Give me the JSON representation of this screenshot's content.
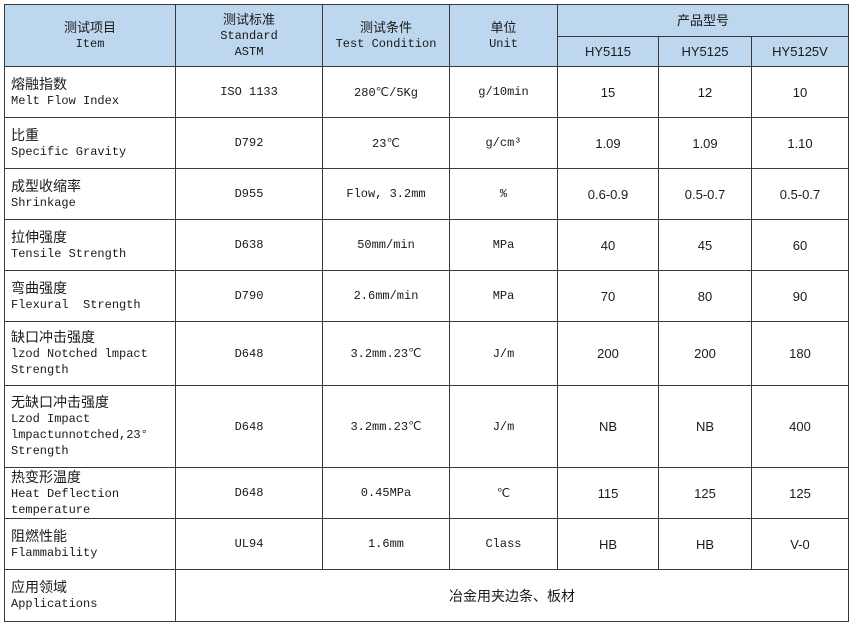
{
  "header": {
    "item": {
      "zh": "测试项目",
      "en": "Item"
    },
    "standard": {
      "zh": "测试标准",
      "en1": "Standard",
      "en2": "ASTM"
    },
    "condition": {
      "zh": "测试条件",
      "en": "Test Condition"
    },
    "unit": {
      "zh": "单位",
      "en": "Unit"
    },
    "product": {
      "zh": "产品型号"
    },
    "models": [
      "HY5115",
      "HY5125",
      "HY5125V"
    ]
  },
  "rows": [
    {
      "zh": "熔融指数",
      "en": "Melt Flow Index",
      "std": "ISO 1133",
      "cond": "280℃/5Kg",
      "unit": "g/10min",
      "v": [
        "15",
        "12",
        "10"
      ]
    },
    {
      "zh": "比重",
      "en": "Specific Gravity",
      "std": "D792",
      "cond": "23℃",
      "unit": "g/cm³",
      "v": [
        "1.09",
        "1.09",
        "1.10"
      ]
    },
    {
      "zh": "成型收缩率",
      "en": "Shrinkage",
      "std": "D955",
      "cond": "Flow, 3.2mm",
      "unit": "%",
      "v": [
        "0.6-0.9",
        "0.5-0.7",
        "0.5-0.7"
      ]
    },
    {
      "zh": "拉伸强度",
      "en": "Tensile Strength",
      "std": "D638",
      "cond": "50mm/min",
      "unit": "MPa",
      "v": [
        "40",
        "45",
        "60"
      ]
    },
    {
      "zh": "弯曲强度",
      "en": "Flexural  Strength",
      "std": "D790",
      "cond": "2.6mm/min",
      "unit": "MPa",
      "v": [
        "70",
        "80",
        "90"
      ]
    },
    {
      "zh": "缺口冲击强度",
      "en": "lzod Notched lmpact",
      "en2": "Strength",
      "std": "D648",
      "cond": "3.2mm.23℃",
      "unit": "J/m",
      "v": [
        "200",
        "200",
        "180"
      ]
    },
    {
      "zh": "无缺口冲击强度",
      "en": "Lzod Impact",
      "en2": "lmpactunnotched,23°",
      "en3": "Strength",
      "std": "D648",
      "cond": "3.2mm.23℃",
      "unit": "J/m",
      "v": [
        "NB",
        "NB",
        "400"
      ]
    },
    {
      "zh": "热变形温度",
      "en": "Heat Deflection",
      "en2": "temperature",
      "std": "D648",
      "cond": "0.45MPa",
      "unit": "℃",
      "v": [
        "115",
        "125",
        "125"
      ]
    },
    {
      "zh": "阻燃性能",
      "en": "Flammability",
      "std": "UL94",
      "cond": "1.6mm",
      "unit": "Class",
      "v": [
        "HB",
        "HB",
        "V-0"
      ]
    }
  ],
  "applications": {
    "zh": "应用领域",
    "en": "Applications",
    "value": "冶金用夹边条、板材"
  }
}
